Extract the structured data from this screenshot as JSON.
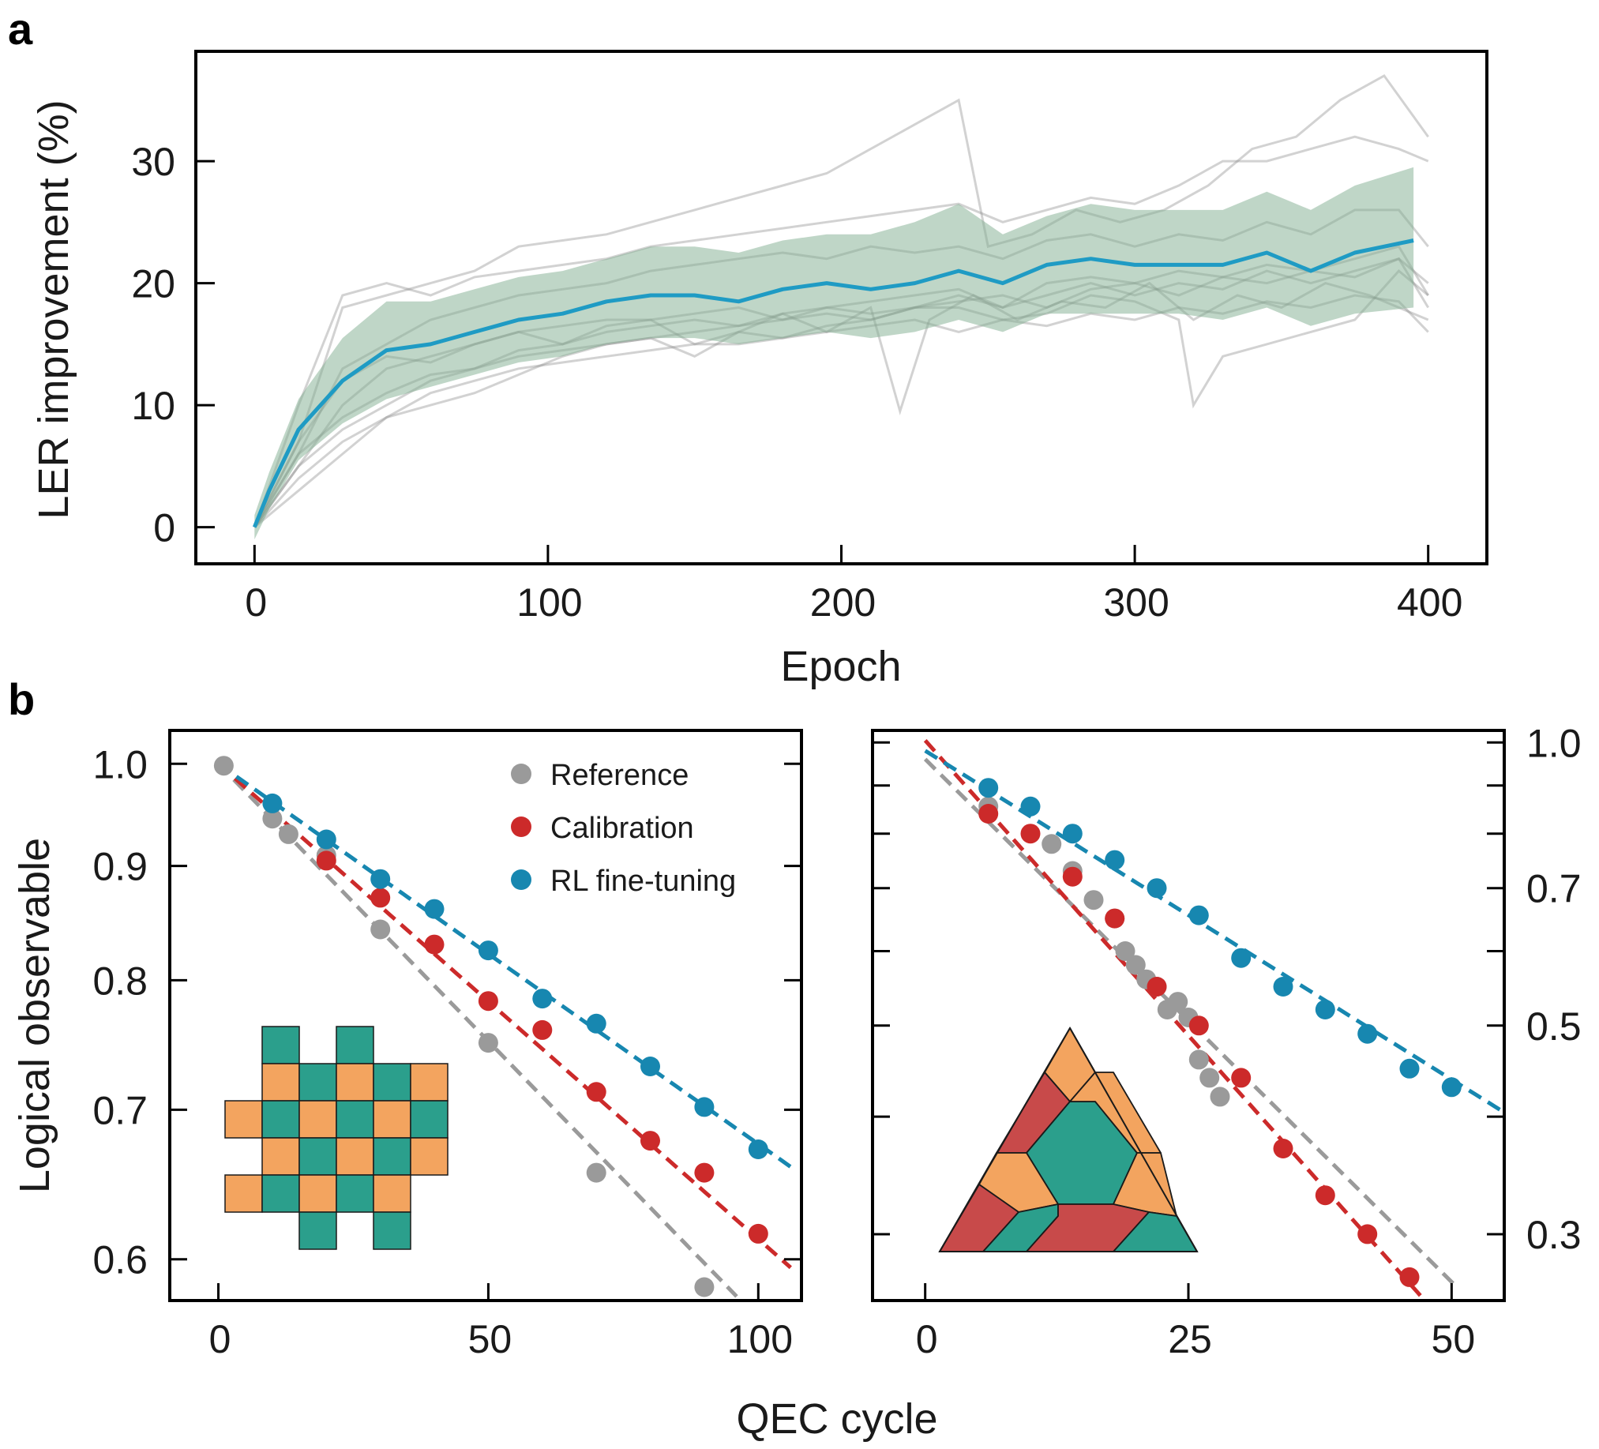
{
  "panels": {
    "a_letter": "a",
    "b_letter": "b"
  },
  "colors": {
    "rl": "#1f9bc4",
    "rl_marker": "#1787b0",
    "calibration": "#cc2a2a",
    "reference": "#9a9a9a",
    "band": "#7fae90",
    "trial": "#8a8a8a",
    "patch_orange": "#f3a45f",
    "patch_teal": "#2b9f8c",
    "patch_red": "#c84a4a"
  },
  "chart_data": [
    {
      "id": "a",
      "type": "line",
      "xlabel": "Epoch",
      "ylabel": "LER improvement (%)",
      "xlim": [
        -20,
        420
      ],
      "ylim": [
        -3,
        39
      ],
      "xticks": [
        0,
        100,
        200,
        300,
        400
      ],
      "yticks": [
        0,
        10,
        20,
        30
      ],
      "mean": {
        "x": [
          0,
          5,
          15,
          30,
          45,
          60,
          75,
          90,
          105,
          120,
          135,
          150,
          165,
          180,
          195,
          210,
          225,
          240,
          255,
          270,
          285,
          300,
          315,
          330,
          345,
          360,
          375,
          395
        ],
        "y": [
          0,
          3,
          8,
          12,
          14.5,
          15,
          16,
          17,
          17.5,
          18.5,
          19,
          19,
          18.5,
          19.5,
          20,
          19.5,
          20,
          21,
          20,
          21.5,
          22,
          21.5,
          21.5,
          21.5,
          22.5,
          21,
          22.5,
          23.5
        ]
      },
      "band": {
        "x": [
          0,
          5,
          15,
          30,
          45,
          60,
          75,
          90,
          105,
          120,
          135,
          150,
          165,
          180,
          195,
          210,
          225,
          240,
          255,
          270,
          285,
          300,
          315,
          330,
          345,
          360,
          375,
          395
        ],
        "lower": [
          -1,
          1.5,
          5.5,
          8.5,
          10.5,
          11.5,
          12.5,
          13.5,
          14,
          15,
          15.5,
          15.5,
          15,
          15.5,
          16,
          15.5,
          16,
          17,
          16,
          17.5,
          17.5,
          17.5,
          17.5,
          17,
          18,
          16.5,
          17.5,
          18
        ],
        "upper": [
          1,
          4.5,
          10.5,
          15.5,
          18.5,
          18.5,
          19.5,
          20.5,
          21,
          22,
          23,
          23,
          22.5,
          23.5,
          24,
          24,
          25,
          26.5,
          24,
          25.5,
          26.5,
          26,
          26,
          26,
          27.5,
          26,
          28,
          29.5
        ]
      },
      "trials": [
        {
          "x": [
            0,
            15,
            30,
            45,
            60,
            75,
            90,
            105,
            120,
            135,
            150,
            165,
            180,
            195,
            210,
            225,
            240,
            250,
            265,
            280,
            295,
            310,
            325,
            340,
            355,
            370,
            385,
            400
          ],
          "y": [
            0,
            7,
            18,
            19,
            20,
            21,
            23,
            23.5,
            24,
            25,
            26,
            27,
            28,
            29,
            31,
            33,
            35,
            23,
            24,
            26,
            25,
            26,
            28,
            31,
            32,
            35,
            37,
            32
          ]
        },
        {
          "x": [
            0,
            15,
            30,
            45,
            60,
            75,
            90,
            105,
            120,
            135,
            150,
            165,
            180,
            195,
            210,
            225,
            240,
            255,
            270,
            285,
            300,
            315,
            330,
            345,
            360,
            375,
            390,
            400
          ],
          "y": [
            0,
            10,
            19,
            20,
            19,
            20.5,
            21,
            21.5,
            22,
            23,
            23.5,
            24,
            24.5,
            25,
            25.5,
            26,
            26.5,
            25,
            26,
            27,
            26.5,
            28,
            30,
            30,
            31,
            32,
            31,
            30
          ]
        },
        {
          "x": [
            0,
            15,
            30,
            45,
            60,
            75,
            90,
            105,
            120,
            135,
            150,
            165,
            180,
            195,
            210,
            225,
            240,
            255,
            270,
            285,
            300,
            315,
            330,
            345,
            360,
            375,
            390,
            400
          ],
          "y": [
            0,
            6,
            13,
            15,
            17,
            18,
            19,
            19.5,
            20,
            21,
            21.5,
            22,
            22.5,
            22,
            23,
            22.5,
            23,
            22,
            23.5,
            24,
            23,
            24,
            23.5,
            25,
            24,
            26,
            26,
            23
          ]
        },
        {
          "x": [
            0,
            15,
            30,
            45,
            60,
            75,
            90,
            105,
            120,
            135,
            150,
            165,
            180,
            195,
            210,
            225,
            240,
            255,
            270,
            285,
            300,
            315,
            330,
            345,
            360,
            375,
            390,
            400
          ],
          "y": [
            0,
            5,
            10,
            13,
            14,
            15,
            16,
            16.5,
            17,
            17,
            17.5,
            18,
            17,
            18,
            17.5,
            18,
            19,
            18,
            19,
            20,
            19,
            20,
            19.5,
            21,
            20,
            21,
            22,
            20
          ]
        },
        {
          "x": [
            0,
            15,
            30,
            45,
            60,
            75,
            90,
            105,
            120,
            135,
            150,
            165,
            180,
            195,
            210,
            220,
            230,
            245,
            260,
            275,
            290,
            305,
            320,
            335,
            350,
            365,
            380,
            400
          ],
          "y": [
            0,
            7,
            12,
            14,
            13.5,
            15,
            16,
            15,
            16.5,
            17,
            15,
            16,
            17.5,
            16,
            18,
            9.5,
            17,
            19,
            17,
            18.5,
            18,
            20,
            17,
            19,
            18,
            20,
            19,
            17
          ]
        },
        {
          "x": [
            0,
            15,
            30,
            45,
            60,
            75,
            90,
            105,
            120,
            135,
            150,
            165,
            180,
            195,
            210,
            225,
            240,
            255,
            270,
            285,
            300,
            315,
            320,
            330,
            345,
            360,
            375,
            390,
            400
          ],
          "y": [
            0,
            6,
            9,
            11,
            12.5,
            13,
            14,
            14.5,
            15,
            15.5,
            14,
            16,
            15.5,
            16.5,
            17,
            18,
            18,
            17,
            17.5,
            19,
            18.5,
            17,
            10,
            14,
            15,
            16,
            17,
            21,
            19
          ]
        },
        {
          "x": [
            0,
            15,
            30,
            45,
            60,
            75,
            90,
            105,
            120,
            135,
            150,
            165,
            180,
            195,
            210,
            225,
            240,
            255,
            270,
            285,
            300,
            315,
            330,
            345,
            360,
            375,
            390,
            400
          ],
          "y": [
            0,
            4,
            7,
            9,
            11,
            12,
            13,
            13.5,
            14,
            14.5,
            15,
            15,
            15.5,
            16,
            16.5,
            17,
            16,
            17,
            16.5,
            17.5,
            17,
            18,
            17.5,
            18.5,
            18,
            19,
            18.5,
            16
          ]
        },
        {
          "x": [
            0,
            15,
            30,
            45,
            60,
            75,
            90,
            105,
            120,
            135,
            150,
            165,
            180,
            195,
            210,
            225,
            240,
            255,
            270,
            285,
            300,
            315,
            330,
            345,
            360,
            375,
            390,
            400
          ],
          "y": [
            0,
            5,
            8,
            10,
            12,
            13,
            14.5,
            15,
            16,
            16.5,
            17,
            16.5,
            17.5,
            18,
            18.5,
            19,
            19.5,
            18,
            20,
            20.5,
            20,
            21,
            20.5,
            21.5,
            21,
            22,
            23,
            19
          ]
        },
        {
          "x": [
            0,
            15,
            30,
            45,
            60,
            75,
            90,
            105,
            120,
            135,
            150,
            165,
            180,
            195,
            210,
            225,
            240,
            255,
            270,
            285,
            300,
            315,
            330,
            345,
            360,
            375,
            390,
            400
          ],
          "y": [
            0,
            3,
            6,
            9,
            10,
            11,
            12.5,
            14,
            15,
            15.5,
            16,
            16.5,
            17,
            17.5,
            17,
            18,
            18.5,
            19,
            18,
            19.5,
            20,
            19,
            20.5,
            20,
            21,
            20.5,
            22,
            18
          ]
        }
      ]
    },
    {
      "id": "b-left",
      "type": "scatter",
      "xlabel": "QEC cycle",
      "ylabel": "Logical observable",
      "y_scale": "log",
      "xlim": [
        -9,
        108
      ],
      "ylim": [
        0.575,
        1.035
      ],
      "xticks": [
        0,
        50,
        100
      ],
      "yticks": [
        0.6,
        0.7,
        0.8,
        0.9,
        1.0
      ],
      "ytick_labels": [
        "0.6",
        "0.7",
        "0.8",
        "0.9",
        "1.0"
      ],
      "legend_position": "top-right",
      "series": [
        {
          "name": "Reference",
          "key": "ref",
          "x": [
            1,
            10,
            13,
            20,
            30,
            50,
            70,
            90
          ],
          "y": [
            0.998,
            0.945,
            0.93,
            0.91,
            0.843,
            0.75,
            0.656,
            0.583
          ],
          "fit": {
            "a": 1.0,
            "b": -0.00572,
            "x_end": 96
          }
        },
        {
          "name": "Calibration",
          "key": "cal",
          "x": [
            20,
            30,
            40,
            50,
            60,
            70,
            80,
            90,
            100
          ],
          "y": [
            0.905,
            0.871,
            0.83,
            0.783,
            0.76,
            0.713,
            0.678,
            0.656,
            0.616
          ],
          "fit": {
            "a": 1.0,
            "b": -0.0049,
            "x_end": 106
          }
        },
        {
          "name": "RL fine-tuning",
          "key": "rl",
          "x": [
            10,
            20,
            30,
            40,
            50,
            60,
            70,
            80,
            90,
            100
          ],
          "y": [
            0.96,
            0.925,
            0.888,
            0.861,
            0.825,
            0.785,
            0.765,
            0.732,
            0.702,
            0.672
          ],
          "fit": {
            "a": 1.0,
            "b": -0.00392,
            "x_end": 106
          }
        }
      ]
    },
    {
      "id": "b-right",
      "type": "scatter",
      "xlabel": "QEC cycle",
      "y_scale": "log",
      "xlim": [
        -5,
        55
      ],
      "ylim": [
        0.255,
        1.03
      ],
      "xticks": [
        0,
        25,
        50
      ],
      "yticks": [
        0.3,
        0.4,
        0.5,
        0.6,
        0.7,
        0.8,
        0.9,
        1.0
      ],
      "ytick_labels": [
        "0.3",
        "",
        "0.5",
        "",
        "0.7",
        "",
        "",
        "1.0"
      ],
      "series": [
        {
          "name": "Reference",
          "key": "ref",
          "x": [
            6,
            12,
            14,
            16,
            18,
            19,
            20,
            21,
            22,
            23,
            24,
            25,
            26,
            27,
            28
          ],
          "y": [
            0.855,
            0.78,
            0.73,
            0.68,
            0.65,
            0.6,
            0.58,
            0.56,
            0.55,
            0.52,
            0.53,
            0.51,
            0.46,
            0.44,
            0.42
          ],
          "fit": {
            "a": 0.96,
            "b": -0.0256,
            "x_end": 51
          }
        },
        {
          "name": "Calibration",
          "key": "cal",
          "x": [
            6,
            10,
            14,
            18,
            22,
            26,
            30,
            34,
            38,
            42,
            46
          ],
          "y": [
            0.84,
            0.8,
            0.72,
            0.65,
            0.55,
            0.5,
            0.44,
            0.37,
            0.33,
            0.3,
            0.27
          ],
          "fit": {
            "a": 1.005,
            "b": -0.0289,
            "x_end": 51
          }
        },
        {
          "name": "RL fine-tuning",
          "key": "rl",
          "x": [
            6,
            10,
            14,
            18,
            22,
            26,
            30,
            34,
            38,
            42,
            46,
            50
          ],
          "y": [
            0.895,
            0.855,
            0.8,
            0.75,
            0.7,
            0.655,
            0.59,
            0.55,
            0.52,
            0.49,
            0.45,
            0.43
          ],
          "fit": {
            "a": 0.98,
            "b": -0.0161,
            "x_end": 55
          }
        }
      ]
    }
  ]
}
